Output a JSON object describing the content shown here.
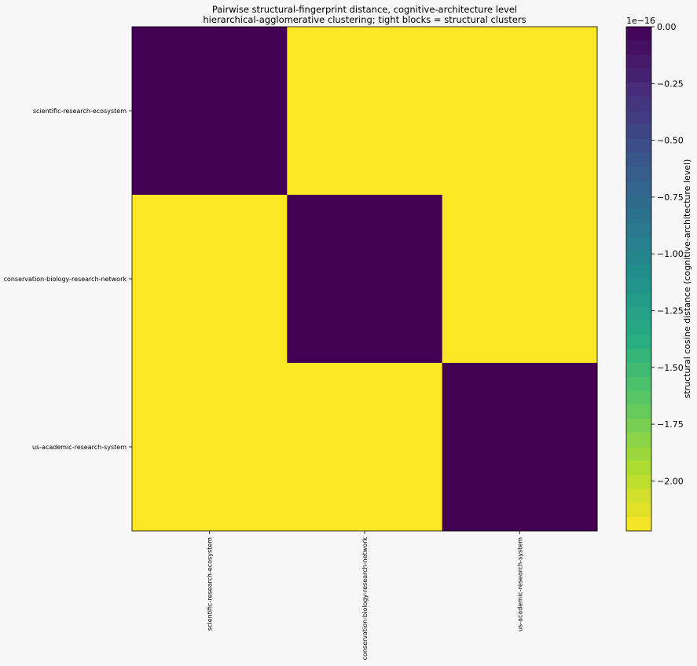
{
  "chart_data": {
    "type": "heatmap",
    "title": "Pairwise structural-fingerprint distance, cognitive-architecture level",
    "subtitle": "hierarchical-agglomerative clustering; tight blocks = structural clusters",
    "rows": [
      "scientific-research-ecosystem",
      "conservation-biology-research-network",
      "us-academic-research-system"
    ],
    "columns": [
      "scientific-research-ecosystem",
      "conservation-biology-research-network",
      "us-academic-research-system"
    ],
    "values": [
      [
        0.0,
        -2.22e-16,
        -2.22e-16
      ],
      [
        -2.22e-16,
        0.0,
        -2.22e-16
      ],
      [
        -2.22e-16,
        -2.22e-16,
        0.0
      ]
    ],
    "colormap": "viridis_r",
    "vmin": -2.22e-16,
    "vmax": 0.0,
    "colorbar": {
      "label": "structural cosine distance (cognitive-architecture level)",
      "offset_text": "1e−16",
      "scale": 1e-16,
      "ticks": [
        0.0,
        -0.25,
        -0.5,
        -0.75,
        -1.0,
        -1.25,
        -1.5,
        -1.75,
        -2.0
      ],
      "tick_labels": [
        "0.00",
        "−0.25",
        "−0.50",
        "−0.75",
        "−1.00",
        "−1.25",
        "−1.50",
        "−1.75",
        "−2.00"
      ]
    },
    "grid": false
  }
}
